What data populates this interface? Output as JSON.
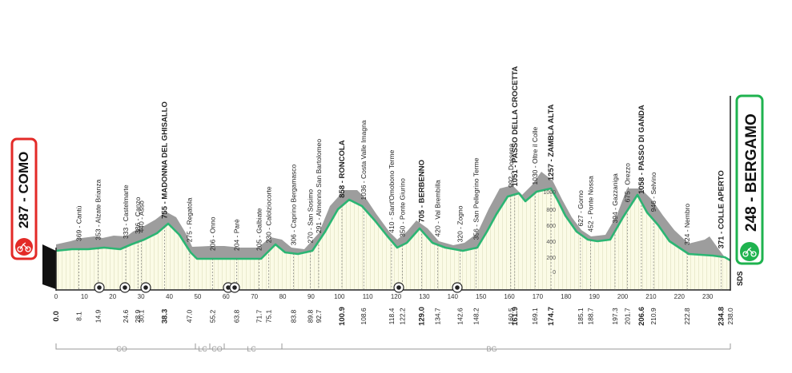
{
  "start": {
    "altitude": "287",
    "name": "COMO"
  },
  "finish": {
    "altitude": "248",
    "name": "BERGAMO"
  },
  "finish_badge": "SDS",
  "axis_ticks": [
    "0",
    "10",
    "20",
    "30",
    "40",
    "50",
    "60",
    "70",
    "80",
    "90",
    "100",
    "110",
    "120",
    "130",
    "140",
    "150",
    "160",
    "170",
    "180",
    "190",
    "200",
    "210",
    "220",
    "230"
  ],
  "altitude_ticks": [
    "1000",
    "800",
    "600",
    "400",
    "200",
    "0"
  ],
  "places": [
    {
      "km": "8.1",
      "label": "369 - Cantù"
    },
    {
      "km": "14.9",
      "label": "353 - Alzate Brianza"
    },
    {
      "km": "24.6",
      "label": "333 - Castelmarte"
    },
    {
      "km": "28.9",
      "label": "386 - Canzo"
    },
    {
      "km": "30.1",
      "label": "440 - Asso"
    },
    {
      "km": "38.3",
      "label": "755 - MADONNA DEL GHISALLO",
      "bold": true
    },
    {
      "km": "47.0",
      "label": "275 - Regatola"
    },
    {
      "km": "55.2",
      "label": "206 - Onno"
    },
    {
      "km": "63.8",
      "label": "204 - Parè"
    },
    {
      "km": "71.7",
      "label": "205 - Galbiate"
    },
    {
      "km": "75.1",
      "label": "230 - Calolziocorte"
    },
    {
      "km": "83.8",
      "label": "306 - Caprino Bergamasco"
    },
    {
      "km": "89.8",
      "label": "270 - San Sosimo"
    },
    {
      "km": "92.7",
      "label": "291 - Almenno San Bartolomeo"
    },
    {
      "km": "100.9",
      "label": "858 - RONCOLA",
      "bold": true
    },
    {
      "km": "108.6",
      "label": "1036 - Costa Valle Imagna"
    },
    {
      "km": "118.4",
      "label": "410 - Sant'Omobono Terme"
    },
    {
      "km": "122.2",
      "label": "350 - Ponte Giurino"
    },
    {
      "km": "129.0",
      "label": "705 - BERBENNO",
      "bold": true
    },
    {
      "km": "134.7",
      "label": "420 - Val Brembilla"
    },
    {
      "km": "142.6",
      "label": "320 - Zogno"
    },
    {
      "km": "148.2",
      "label": "356 - San Pellegrino Terme"
    },
    {
      "km": "160.5",
      "label": "992 - Dossena"
    },
    {
      "km": "161.9",
      "label": "1051 - PASSO DELLA CROCETTA",
      "bold": true
    },
    {
      "km": "169.1",
      "label": "1030 - Oltre il Colle"
    },
    {
      "km": "174.7",
      "label": "1257 - ZAMBLA ALTA",
      "bold": true
    },
    {
      "km": "185.1",
      "label": "627 - Gorno"
    },
    {
      "km": "188.7",
      "label": "452 - Ponte Nossa"
    },
    {
      "km": "197.3",
      "label": "394 - Gazzaniga"
    },
    {
      "km": "201.7",
      "label": "675 - Orezzo"
    },
    {
      "km": "206.6",
      "label": "1058 - PASSO DI GANDA",
      "bold": true
    },
    {
      "km": "210.9",
      "label": "946 - Selvino"
    },
    {
      "km": "222.8",
      "label": "324 - Nembro"
    },
    {
      "km": "234.8",
      "label": "371 - COLLE APERTO",
      "bold": true
    },
    {
      "km": "238.0",
      "label": ""
    }
  ],
  "start_km": "0.0",
  "provinces": [
    "CO",
    "LC",
    "CO",
    "LC",
    "BG"
  ],
  "colors": {
    "start": "#e32a27",
    "finish": "#1fb34f",
    "profile_line": "#2bb673",
    "fill": "#fbfbe6",
    "shadow": "#9b9b9b"
  }
}
